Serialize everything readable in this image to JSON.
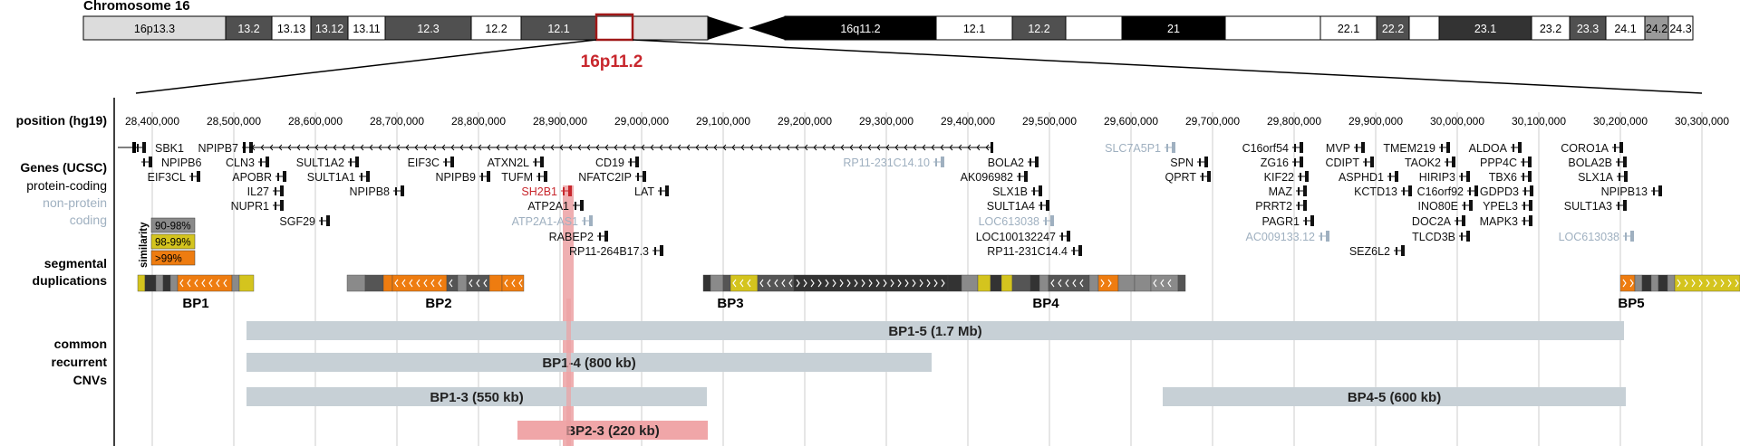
{
  "chromosome": {
    "title": "Chromosome 16",
    "p_bands": [
      {
        "name": "16p13.3",
        "fill": "#dcdcdc"
      },
      {
        "name": "13.2",
        "fill": "#505050"
      },
      {
        "name": "13.13",
        "fill": "#ffffff"
      },
      {
        "name": "13.12",
        "fill": "#505050"
      },
      {
        "name": "13.11",
        "fill": "#ffffff"
      },
      {
        "name": "12.3",
        "fill": "#505050"
      },
      {
        "name": "12.2",
        "fill": "#ffffff"
      },
      {
        "name": "12.1",
        "fill": "#505050"
      },
      {
        "name": "",
        "fill": "#ffffff"
      },
      {
        "name": "",
        "fill": "#dcdcdc"
      }
    ],
    "q_bands": [
      {
        "name": "16q11.2",
        "fill": "#000000"
      },
      {
        "name": "12.1",
        "fill": "#ffffff"
      },
      {
        "name": "12.2",
        "fill": "#505050"
      },
      {
        "name": "",
        "fill": "#ffffff"
      },
      {
        "name": "21",
        "fill": "#000000"
      },
      {
        "name": "",
        "fill": "#ffffff"
      },
      {
        "name": "22.1",
        "fill": "#ffffff"
      },
      {
        "name": "22.2",
        "fill": "#505050"
      },
      {
        "name": "",
        "fill": "#ffffff"
      },
      {
        "name": "23.1",
        "fill": "#333333"
      },
      {
        "name": "23.2",
        "fill": "#ffffff"
      },
      {
        "name": "23.3",
        "fill": "#505050"
      },
      {
        "name": "24.1",
        "fill": "#ffffff"
      },
      {
        "name": "24.2",
        "fill": "#9a9a9a"
      },
      {
        "name": "24.3",
        "fill": "#ffffff"
      }
    ],
    "highlight_label": "16p11.2",
    "highlight_color": "#c8272d"
  },
  "labels": {
    "position": "position (hg19)",
    "genes": "Genes (UCSC)",
    "protein_coding": "protein-coding",
    "non_protein_1": "non-protein",
    "non_protein_2": "coding",
    "segdups_1": "segmental",
    "segdups_2": "duplications",
    "cnv_1": "common",
    "cnv_2": "recurrent",
    "cnv_3": "CNVs",
    "similarity": "similarity"
  },
  "similarity_legend": [
    {
      "label": "90-98%",
      "color": "#8a8a8a"
    },
    {
      "label": "98-99%",
      "color": "#d4c41e"
    },
    {
      "label": ">99%",
      "color": "#ee7c10"
    }
  ],
  "positions": [
    "28,400,000",
    "28,500,000",
    "28,600,000",
    "28,700,000",
    "28,800,000",
    "28,900,000",
    "29,000,000",
    "29,100,000",
    "29,200,000",
    "29,300,000",
    "29,400,000",
    "29,500,000",
    "29,600,000",
    "29,700,000",
    "29,800,000",
    "29,900,000",
    "30,000,000",
    "30,100,000",
    "30,200,000",
    "30,300,000"
  ],
  "genes": [
    {
      "name": "SBK1",
      "type": "coding"
    },
    {
      "name": "NPIPB7",
      "type": "coding"
    },
    {
      "name": "NPIPB6",
      "type": "coding"
    },
    {
      "name": "EIF3CL",
      "type": "coding"
    },
    {
      "name": "CLN3",
      "type": "coding"
    },
    {
      "name": "APOBR",
      "type": "coding"
    },
    {
      "name": "IL27",
      "type": "coding"
    },
    {
      "name": "NUPR1",
      "type": "coding"
    },
    {
      "name": "SGF29",
      "type": "coding"
    },
    {
      "name": "SULT1A2",
      "type": "coding"
    },
    {
      "name": "SULT1A1",
      "type": "coding"
    },
    {
      "name": "NPIPB8",
      "type": "coding"
    },
    {
      "name": "EIF3C",
      "type": "coding"
    },
    {
      "name": "NPIPB9",
      "type": "coding"
    },
    {
      "name": "ATXN2L",
      "type": "coding"
    },
    {
      "name": "TUFM",
      "type": "coding"
    },
    {
      "name": "SH2B1",
      "type": "highlight"
    },
    {
      "name": "ATP2A1",
      "type": "coding"
    },
    {
      "name": "ATP2A1-AS1",
      "type": "noncoding"
    },
    {
      "name": "RABEP2",
      "type": "coding"
    },
    {
      "name": "RP11-264B17.3",
      "type": "coding"
    },
    {
      "name": "CD19",
      "type": "coding"
    },
    {
      "name": "NFATC2IP",
      "type": "coding"
    },
    {
      "name": "LAT",
      "type": "coding"
    },
    {
      "name": "RP11-231C14.10",
      "type": "noncoding"
    },
    {
      "name": "BOLA2",
      "type": "coding"
    },
    {
      "name": "AK096982",
      "type": "coding"
    },
    {
      "name": "SLX1B",
      "type": "coding"
    },
    {
      "name": "SULT1A4",
      "type": "coding"
    },
    {
      "name": "LOC613038",
      "type": "noncoding"
    },
    {
      "name": "LOC100132247",
      "type": "coding"
    },
    {
      "name": "RP11-231C14.4",
      "type": "coding"
    },
    {
      "name": "SLC7A5P1",
      "type": "noncoding"
    },
    {
      "name": "SPN",
      "type": "coding"
    },
    {
      "name": "QPRT",
      "type": "coding"
    },
    {
      "name": "C16orf54",
      "type": "coding"
    },
    {
      "name": "ZG16",
      "type": "coding"
    },
    {
      "name": "KIF22",
      "type": "coding"
    },
    {
      "name": "MAZ",
      "type": "coding"
    },
    {
      "name": "PRRT2",
      "type": "coding"
    },
    {
      "name": "PAGR1",
      "type": "coding"
    },
    {
      "name": "AC009133.12",
      "type": "noncoding"
    },
    {
      "name": "MVP",
      "type": "coding"
    },
    {
      "name": "CDIPT",
      "type": "coding"
    },
    {
      "name": "ASPHD1",
      "type": "coding"
    },
    {
      "name": "KCTD13",
      "type": "coding"
    },
    {
      "name": "SEZ6L2",
      "type": "coding"
    },
    {
      "name": "TMEM219",
      "type": "coding"
    },
    {
      "name": "TAOK2",
      "type": "coding"
    },
    {
      "name": "HIRIP3",
      "type": "coding"
    },
    {
      "name": "C16orf92",
      "type": "coding"
    },
    {
      "name": "INO80E",
      "type": "coding"
    },
    {
      "name": "DOC2A",
      "type": "coding"
    },
    {
      "name": "TLCD3B",
      "type": "coding"
    },
    {
      "name": "ALDOA",
      "type": "coding"
    },
    {
      "name": "PPP4C",
      "type": "coding"
    },
    {
      "name": "TBX6",
      "type": "coding"
    },
    {
      "name": "GDPD3",
      "type": "coding"
    },
    {
      "name": "YPEL3",
      "type": "coding"
    },
    {
      "name": "MAPK3",
      "type": "coding"
    },
    {
      "name": "CORO1A",
      "type": "coding"
    },
    {
      "name": "BOLA2B",
      "type": "coding"
    },
    {
      "name": "SLX1A",
      "type": "coding"
    },
    {
      "name": "NPIPB13",
      "type": "coding"
    },
    {
      "name": "SULT1A3",
      "type": "coding"
    },
    {
      "name": "LOC613038",
      "type": "noncoding"
    }
  ],
  "breakpoints": [
    "BP1",
    "BP2",
    "BP3",
    "BP4",
    "BP5"
  ],
  "cnvs": [
    {
      "label": "BP1-5 (1.7 Mb)",
      "color": "#c7d0d6"
    },
    {
      "label": "BP1-4 (800 kb)",
      "color": "#c7d0d6"
    },
    {
      "label": "BP1-3 (550 kb)",
      "color": "#c7d0d6"
    },
    {
      "label": "BP4-5 (600 kb)",
      "color": "#c7d0d6"
    },
    {
      "label": "BP2-3 (220 kb)",
      "color": "#f0a6a8"
    }
  ],
  "colors": {
    "coding_text": "#111111",
    "noncoding_text": "#9fb0c0",
    "highlight_text": "#c8272d",
    "highlight_column": "#eca1a3",
    "gridline": "#cccccc"
  }
}
